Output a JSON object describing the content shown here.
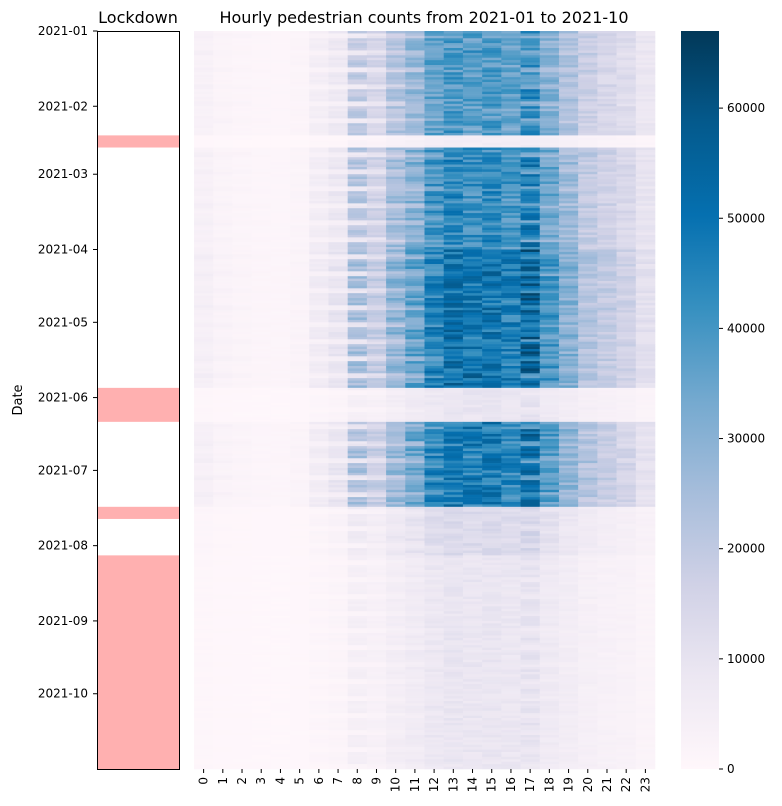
{
  "chart_data": [
    {
      "type": "table",
      "title": "Lockdown",
      "ylabel": "Date",
      "date_range": [
        "2021-01-01",
        "2021-10-31"
      ],
      "date_ticks": [
        "2021-01",
        "2021-02",
        "2021-03",
        "2021-04",
        "2021-05",
        "2021-06",
        "2021-07",
        "2021-08",
        "2021-09",
        "2021-10"
      ],
      "lockdown_periods": [
        {
          "start": "2021-02-13",
          "end": "2021-02-17"
        },
        {
          "start": "2021-05-28",
          "end": "2021-06-10"
        },
        {
          "start": "2021-07-16",
          "end": "2021-07-20"
        },
        {
          "start": "2021-08-05",
          "end": "2021-10-31"
        }
      ],
      "fill_color": "#ffb0b0"
    },
    {
      "type": "heatmap",
      "title": "Hourly pedestrian counts from 2021-01 to 2021-10",
      "x": [
        "0",
        "1",
        "2",
        "3",
        "4",
        "5",
        "6",
        "7",
        "8",
        "9",
        "10",
        "11",
        "12",
        "13",
        "14",
        "15",
        "16",
        "17",
        "18",
        "19",
        "20",
        "21",
        "22",
        "23"
      ],
      "y_range": [
        "2021-01-01",
        "2021-10-31"
      ],
      "ylabel": "Date",
      "colorbar_ticks": [
        0,
        10000,
        20000,
        30000,
        40000,
        50000,
        60000
      ],
      "colorbar_max": 67000,
      "colormap": "PuBu",
      "colormap_stops": [
        "#fff7fb",
        "#ece7f2",
        "#d0d1e6",
        "#a6bddb",
        "#74a9cf",
        "#3690c0",
        "#0570b0",
        "#045a8d",
        "#023858"
      ],
      "hourly_profile_normal_weekday": [
        3500,
        2000,
        1500,
        1200,
        1200,
        2000,
        6000,
        9000,
        23000,
        18000,
        27000,
        33000,
        42000,
        46000,
        43000,
        45000,
        42000,
        50000,
        36000,
        28000,
        20000,
        17000,
        15000,
        10000
      ],
      "hourly_profile_weekend": [
        4500,
        3000,
        2200,
        1500,
        1200,
        1500,
        3000,
        4500,
        8000,
        11000,
        20000,
        27000,
        38000,
        44000,
        46000,
        45000,
        42000,
        38000,
        32000,
        26000,
        22000,
        18000,
        14000,
        10000
      ],
      "period_scale_factors": [
        {
          "start": "2021-01-01",
          "end": "2021-02-12",
          "factor": 0.85
        },
        {
          "start": "2021-02-13",
          "end": "2021-02-17",
          "factor": 0.12
        },
        {
          "start": "2021-02-18",
          "end": "2021-03-31",
          "factor": 0.95
        },
        {
          "start": "2021-04-01",
          "end": "2021-05-27",
          "factor": 1.1
        },
        {
          "start": "2021-05-28",
          "end": "2021-06-10",
          "factor": 0.2
        },
        {
          "start": "2021-06-11",
          "end": "2021-07-15",
          "factor": 1.05
        },
        {
          "start": "2021-07-16",
          "end": "2021-08-04",
          "factor": 0.3
        },
        {
          "start": "2021-08-05",
          "end": "2021-10-31",
          "factor": 0.2
        }
      ]
    }
  ]
}
